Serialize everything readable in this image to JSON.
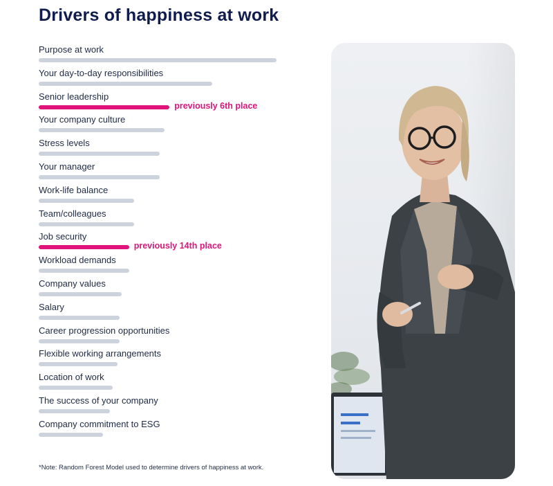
{
  "title": "Drivers of happiness at work",
  "footnote": "*Note: Random Forest Model used to determine drivers of happiness at work.",
  "colors": {
    "title": "#0f1c4d",
    "bar": "#ccd3dc",
    "highlight": "#e0147a"
  },
  "photo": {
    "description_icon": "woman-presenting-photo"
  },
  "chart_data": {
    "type": "bar",
    "orientation": "horizontal",
    "title": "Drivers of happiness at work",
    "categories": [
      "Purpose at work",
      "Your day-to-day responsibilities",
      "Senior leadership",
      "Your company culture",
      "Stress levels",
      "Your manager",
      "Work-life balance",
      "Team/colleagues",
      "Job security",
      "Workload demands",
      "Company values",
      "Salary",
      "Career progression opportunities",
      "Flexible working arrangements",
      "Location of work",
      "The success of your company",
      "Company commitment to ESG"
    ],
    "values": [
      100,
      73,
      55,
      53,
      51,
      51,
      40,
      40,
      38,
      38,
      35,
      34,
      34,
      33,
      31,
      30,
      27
    ],
    "highlight": [
      false,
      false,
      true,
      false,
      false,
      false,
      false,
      false,
      true,
      false,
      false,
      false,
      false,
      false,
      false,
      false,
      false
    ],
    "notes": [
      "",
      "",
      "previously 6th place",
      "",
      "",
      "",
      "",
      "",
      "previously 14th place",
      "",
      "",
      "",
      "",
      "",
      "",
      "",
      ""
    ],
    "xlim": [
      0,
      100
    ],
    "grid": false,
    "legend": "none"
  }
}
